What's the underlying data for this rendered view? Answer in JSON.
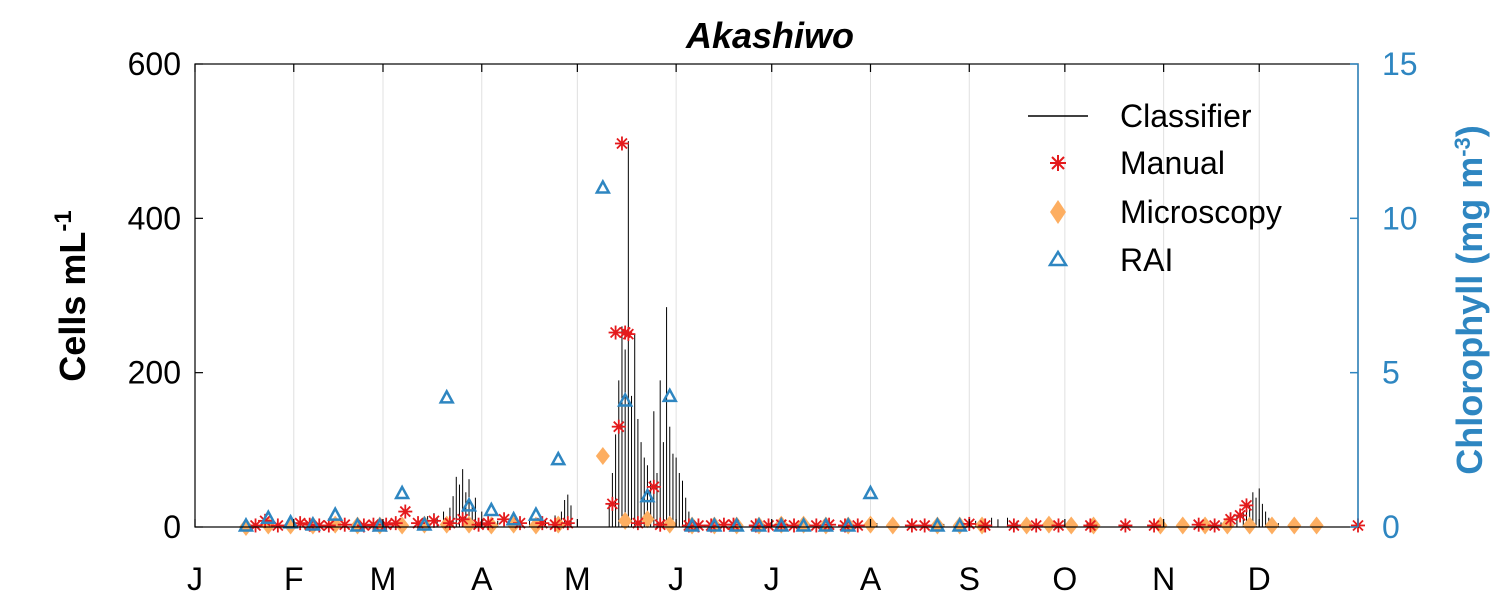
{
  "chart_data": {
    "type": "line",
    "title": "Akashiwo",
    "ylabel_left": "Cells mL",
    "ylabel_left_sup": "-1",
    "ylabel_right": "Chlorophyll (mg m",
    "ylabel_right_sup": "-3",
    "ylabel_right_close": ")",
    "xlim": [
      0,
      365
    ],
    "ylim_left": [
      0,
      600
    ],
    "ylim_right": [
      0,
      15
    ],
    "yticks_left": [
      0,
      200,
      400,
      600
    ],
    "yticks_right": [
      0,
      5,
      10,
      15
    ],
    "month_labels": [
      "J",
      "F",
      "M",
      "A",
      "M",
      "J",
      "J",
      "A",
      "S",
      "O",
      "N",
      "D"
    ],
    "month_starts": [
      0,
      31,
      59,
      90,
      120,
      151,
      181,
      212,
      243,
      273,
      304,
      334
    ],
    "grid": true,
    "legend_position": "top-right",
    "colors": {
      "axis": "#000000",
      "right_axis": "#2e86c1",
      "classifier": "#000000",
      "manual": "#e41a1c",
      "microscopy": "#fdae61",
      "rai": "#2e86c1",
      "grid": "#e0e0e0"
    },
    "series": [
      {
        "name": "Classifier",
        "kind": "line",
        "spikes": [
          [
            64,
            3
          ],
          [
            66,
            6
          ],
          [
            70,
            8
          ],
          [
            73,
            14
          ],
          [
            75,
            18
          ],
          [
            76,
            12
          ],
          [
            78,
            20
          ],
          [
            80,
            25
          ],
          [
            81,
            40
          ],
          [
            82,
            65
          ],
          [
            83,
            55
          ],
          [
            84,
            75
          ],
          [
            85,
            45
          ],
          [
            86,
            62
          ],
          [
            87,
            30
          ],
          [
            88,
            38
          ],
          [
            90,
            20
          ],
          [
            92,
            12
          ],
          [
            95,
            8
          ],
          [
            100,
            5
          ],
          [
            105,
            8
          ],
          [
            110,
            10
          ],
          [
            113,
            15
          ],
          [
            115,
            20
          ],
          [
            116,
            35
          ],
          [
            117,
            42
          ],
          [
            118,
            28
          ],
          [
            130,
            30
          ],
          [
            131,
            70
          ],
          [
            132,
            120
          ],
          [
            133,
            190
          ],
          [
            134,
            260
          ],
          [
            135,
            230
          ],
          [
            136,
            500
          ],
          [
            137,
            170
          ],
          [
            138,
            250
          ],
          [
            139,
            140
          ],
          [
            140,
            110
          ],
          [
            141,
            90
          ],
          [
            142,
            80
          ],
          [
            143,
            60
          ],
          [
            144,
            150
          ],
          [
            145,
            70
          ],
          [
            146,
            190
          ],
          [
            147,
            110
          ],
          [
            148,
            285
          ],
          [
            149,
            130
          ],
          [
            150,
            95
          ],
          [
            151,
            90
          ],
          [
            152,
            70
          ],
          [
            153,
            60
          ],
          [
            154,
            38
          ],
          [
            155,
            20
          ],
          [
            156,
            10
          ],
          [
            158,
            5
          ],
          [
            212,
            8
          ],
          [
            214,
            5
          ],
          [
            218,
            6
          ],
          [
            235,
            4
          ],
          [
            240,
            6
          ],
          [
            245,
            8
          ],
          [
            248,
            10
          ],
          [
            250,
            12
          ],
          [
            252,
            10
          ],
          [
            255,
            12
          ],
          [
            258,
            8
          ],
          [
            262,
            6
          ],
          [
            268,
            5
          ],
          [
            275,
            6
          ],
          [
            280,
            5
          ],
          [
            315,
            4
          ],
          [
            322,
            6
          ],
          [
            325,
            10
          ],
          [
            327,
            15
          ],
          [
            329,
            20
          ],
          [
            330,
            35
          ],
          [
            331,
            28
          ],
          [
            332,
            45
          ],
          [
            333,
            38
          ],
          [
            334,
            50
          ],
          [
            335,
            30
          ],
          [
            336,
            20
          ],
          [
            337,
            12
          ],
          [
            340,
            5
          ]
        ]
      },
      {
        "name": "Manual",
        "kind": "marker",
        "unit": "cells",
        "points": [
          [
            19,
            2
          ],
          [
            22,
            8
          ],
          [
            26,
            2
          ],
          [
            33,
            5
          ],
          [
            36,
            3
          ],
          [
            39,
            2
          ],
          [
            42,
            2
          ],
          [
            47,
            3
          ],
          [
            53,
            2
          ],
          [
            56,
            3
          ],
          [
            60,
            3
          ],
          [
            63,
            5
          ],
          [
            66,
            20
          ],
          [
            70,
            5
          ],
          [
            75,
            8
          ],
          [
            80,
            5
          ],
          [
            84,
            10
          ],
          [
            89,
            3
          ],
          [
            92,
            5
          ],
          [
            97,
            10
          ],
          [
            102,
            5
          ],
          [
            109,
            5
          ],
          [
            113,
            3
          ],
          [
            117,
            5
          ],
          [
            131,
            30
          ],
          [
            132,
            252
          ],
          [
            133,
            130
          ],
          [
            134,
            497
          ],
          [
            135,
            252
          ],
          [
            136,
            250
          ],
          [
            139,
            5
          ],
          [
            144,
            52
          ],
          [
            146,
            3
          ],
          [
            155,
            2
          ],
          [
            158,
            2
          ],
          [
            162,
            2
          ],
          [
            166,
            3
          ],
          [
            169,
            3
          ],
          [
            176,
            2
          ],
          [
            180,
            2
          ],
          [
            184,
            3
          ],
          [
            188,
            2
          ],
          [
            195,
            2
          ],
          [
            199,
            3
          ],
          [
            204,
            2
          ],
          [
            208,
            2
          ],
          [
            225,
            2
          ],
          [
            229,
            2
          ],
          [
            243,
            4
          ],
          [
            248,
            2
          ],
          [
            257,
            2
          ],
          [
            264,
            2
          ],
          [
            271,
            2
          ],
          [
            281,
            2
          ],
          [
            292,
            2
          ],
          [
            301,
            2
          ],
          [
            315,
            3
          ],
          [
            320,
            2
          ],
          [
            325,
            10
          ],
          [
            328,
            15
          ],
          [
            330,
            28
          ],
          [
            365,
            2
          ]
        ]
      },
      {
        "name": "Microscopy",
        "kind": "marker",
        "unit": "cells",
        "points": [
          [
            16,
            0
          ],
          [
            23,
            2
          ],
          [
            30,
            2
          ],
          [
            37,
            2
          ],
          [
            44,
            3
          ],
          [
            51,
            2
          ],
          [
            58,
            2
          ],
          [
            65,
            2
          ],
          [
            72,
            3
          ],
          [
            79,
            3
          ],
          [
            86,
            3
          ],
          [
            93,
            2
          ],
          [
            100,
            3
          ],
          [
            107,
            2
          ],
          [
            114,
            3
          ],
          [
            128,
            92
          ],
          [
            135,
            8
          ],
          [
            142,
            10
          ],
          [
            149,
            3
          ],
          [
            156,
            2
          ],
          [
            163,
            2
          ],
          [
            170,
            2
          ],
          [
            177,
            2
          ],
          [
            184,
            3
          ],
          [
            191,
            3
          ],
          [
            198,
            2
          ],
          [
            205,
            2
          ],
          [
            212,
            3
          ],
          [
            219,
            2
          ],
          [
            233,
            2
          ],
          [
            240,
            2
          ],
          [
            247,
            2
          ],
          [
            261,
            2
          ],
          [
            268,
            3
          ],
          [
            275,
            2
          ],
          [
            282,
            2
          ],
          [
            303,
            2
          ],
          [
            310,
            2
          ],
          [
            317,
            2
          ],
          [
            324,
            2
          ],
          [
            331,
            2
          ],
          [
            338,
            2
          ],
          [
            345,
            2
          ],
          [
            352,
            2
          ]
        ]
      },
      {
        "name": "RAI",
        "kind": "marker",
        "unit": "chlorophyll",
        "points": [
          [
            16,
            0.05
          ],
          [
            23,
            0.3
          ],
          [
            30,
            0.15
          ],
          [
            37,
            0.08
          ],
          [
            44,
            0.4
          ],
          [
            51,
            0.05
          ],
          [
            58,
            0.05
          ],
          [
            65,
            1.1
          ],
          [
            72,
            0.08
          ],
          [
            79,
            4.2
          ],
          [
            86,
            0.7
          ],
          [
            93,
            0.55
          ],
          [
            100,
            0.25
          ],
          [
            107,
            0.4
          ],
          [
            114,
            2.2
          ],
          [
            128,
            11.0
          ],
          [
            135,
            4.1
          ],
          [
            142,
            1.0
          ],
          [
            149,
            4.25
          ],
          [
            156,
            0.05
          ],
          [
            163,
            0.05
          ],
          [
            170,
            0.05
          ],
          [
            177,
            0.05
          ],
          [
            184,
            0.05
          ],
          [
            191,
            0.05
          ],
          [
            198,
            0.05
          ],
          [
            205,
            0.05
          ],
          [
            212,
            1.1
          ],
          [
            233,
            0.05
          ],
          [
            240,
            0.05
          ]
        ]
      }
    ]
  }
}
